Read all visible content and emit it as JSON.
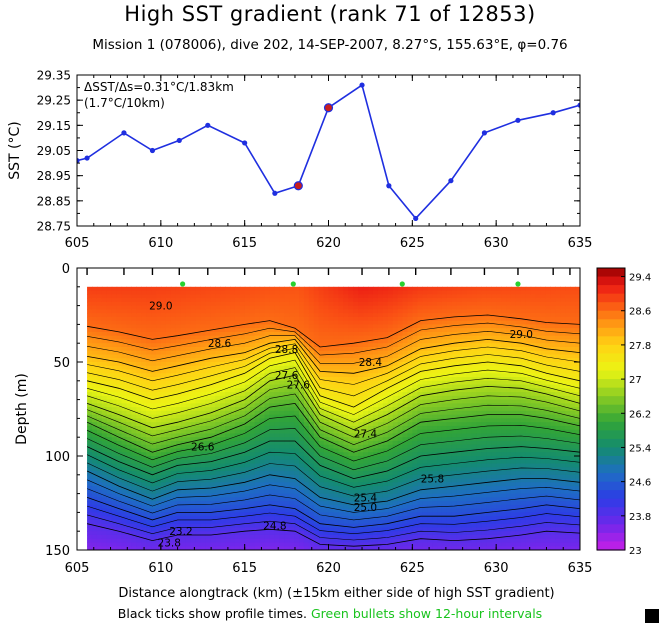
{
  "header": {
    "title": "High SST gradient (rank 71 of 12853)",
    "subtitle": "Mission 1 (078006),  dive 202,  14-SEP-2007,  8.27°S,  155.63°E,   φ=0.76"
  },
  "footer": {
    "black_text": "Black ticks show profile times. ",
    "green_text": "Green bullets show 12-hour intervals"
  },
  "colors": {
    "line": "#1f2fe0",
    "highlight": "#c81e1e",
    "green_bullet": "#27d130"
  },
  "chart_data": [
    {
      "type": "line",
      "ylabel": "SST (°C)",
      "xlim": [
        605,
        635
      ],
      "ylim": [
        28.75,
        29.35
      ],
      "xticks": [
        605,
        610,
        615,
        620,
        625,
        630,
        635
      ],
      "yticks": [
        "28.75",
        "28.85",
        "28.95",
        "29.05",
        "29.15",
        "29.25",
        "29.35"
      ],
      "annotation": [
        "ΔSST/Δs=0.31°C/1.83km",
        "(1.7°C/10km)"
      ],
      "x": [
        605.0,
        605.6,
        607.8,
        609.5,
        611.1,
        612.8,
        615.0,
        616.8,
        618.2,
        620.0,
        622.0,
        623.6,
        625.2,
        627.3,
        629.3,
        631.3,
        633.4,
        635.0
      ],
      "y": [
        29.01,
        29.02,
        29.12,
        29.05,
        29.09,
        29.15,
        29.08,
        28.88,
        28.91,
        29.22,
        29.31,
        28.91,
        28.78,
        28.93,
        29.12,
        29.17,
        29.2,
        29.23
      ],
      "highlight": [
        {
          "x": 618.2,
          "y": 28.91
        },
        {
          "x": 620.0,
          "y": 29.22
        }
      ]
    },
    {
      "type": "heatmap",
      "xlabel": "Distance alongtrack (km) (±15km either side of high SST gradient)",
      "ylabel": "Depth (m)",
      "xlim": [
        605,
        635
      ],
      "ylim": [
        0,
        150
      ],
      "xticks": [
        605,
        610,
        615,
        620,
        625,
        630,
        635
      ],
      "yticks": [
        0,
        50,
        100,
        150
      ],
      "colorbar_ticks": [
        "29.4",
        "28.6",
        "27.8",
        "27",
        "26.2",
        "25.4",
        "24.6",
        "23.8",
        "23"
      ],
      "colorbar_range": [
        23.0,
        29.6
      ],
      "contour_interval": 0.2,
      "contour_labels": [
        "29.0",
        "28.6",
        "28.8",
        "28.4",
        "29.0",
        "27.6",
        "27.6",
        "27.4",
        "26.6",
        "25.8",
        "25.4",
        "25.0",
        "24.8",
        "23.2",
        "23.8"
      ],
      "profile_x": [
        605.6,
        607.8,
        609.5,
        611.1,
        612.8,
        615.0,
        616.8,
        618.2,
        620.0,
        622.0,
        623.6,
        625.2,
        627.3,
        629.3,
        631.3,
        633.4,
        634.4
      ],
      "green_bullets_x": [
        611.3,
        617.9,
        624.4,
        631.3
      ],
      "surface_temp_x": [
        605.6,
        609.5,
        615.0,
        618.2,
        622.0,
        625.2,
        629.3,
        634.4
      ],
      "surface_temp": [
        29.1,
        29.05,
        28.95,
        28.85,
        29.35,
        29.2,
        29.05,
        28.95
      ],
      "iso_x": [
        605.6,
        607.5,
        609.5,
        611.0,
        613.0,
        615.0,
        616.5,
        618.0,
        619.5,
        621.5,
        623.5,
        625.5,
        627.5,
        629.5,
        631.5,
        633.0,
        635.0
      ],
      "iso_depths": {
        "28.6": [
          31,
          34,
          38,
          36,
          33,
          30,
          28,
          32,
          42,
          40,
          37,
          28,
          26,
          25,
          27,
          29,
          30
        ],
        "28.0": [
          47,
          50,
          55,
          52,
          48,
          45,
          40,
          38,
          55,
          56,
          52,
          43,
          40,
          38,
          40,
          43,
          45
        ],
        "27.4": [
          60,
          64,
          70,
          67,
          62,
          56,
          48,
          45,
          68,
          74,
          64,
          55,
          52,
          50,
          52,
          56,
          60
        ],
        "26.8": [
          72,
          78,
          85,
          82,
          77,
          70,
          60,
          57,
          78,
          86,
          78,
          68,
          65,
          63,
          64,
          67,
          72
        ],
        "26.2": [
          82,
          90,
          98,
          94,
          90,
          83,
          74,
          72,
          90,
          98,
          92,
          82,
          80,
          78,
          78,
          80,
          84
        ],
        "25.6": [
          95,
          103,
          110,
          105,
          103,
          98,
          92,
          92,
          105,
          112,
          108,
          100,
          98,
          96,
          95,
          96,
          98
        ],
        "25.0": [
          108,
          116,
          123,
          118,
          117,
          114,
          110,
          112,
          122,
          126,
          124,
          118,
          116,
          114,
          112,
          112,
          114
        ],
        "24.4": [
          122,
          128,
          134,
          130,
          130,
          128,
          126,
          128,
          136,
          138,
          136,
          132,
          132,
          130,
          128,
          126,
          128
        ],
        "23.8": [
          136,
          140,
          145,
          142,
          142,
          140,
          139,
          140,
          147,
          148,
          147,
          144,
          145,
          144,
          142,
          140,
          141
        ]
      }
    }
  ]
}
